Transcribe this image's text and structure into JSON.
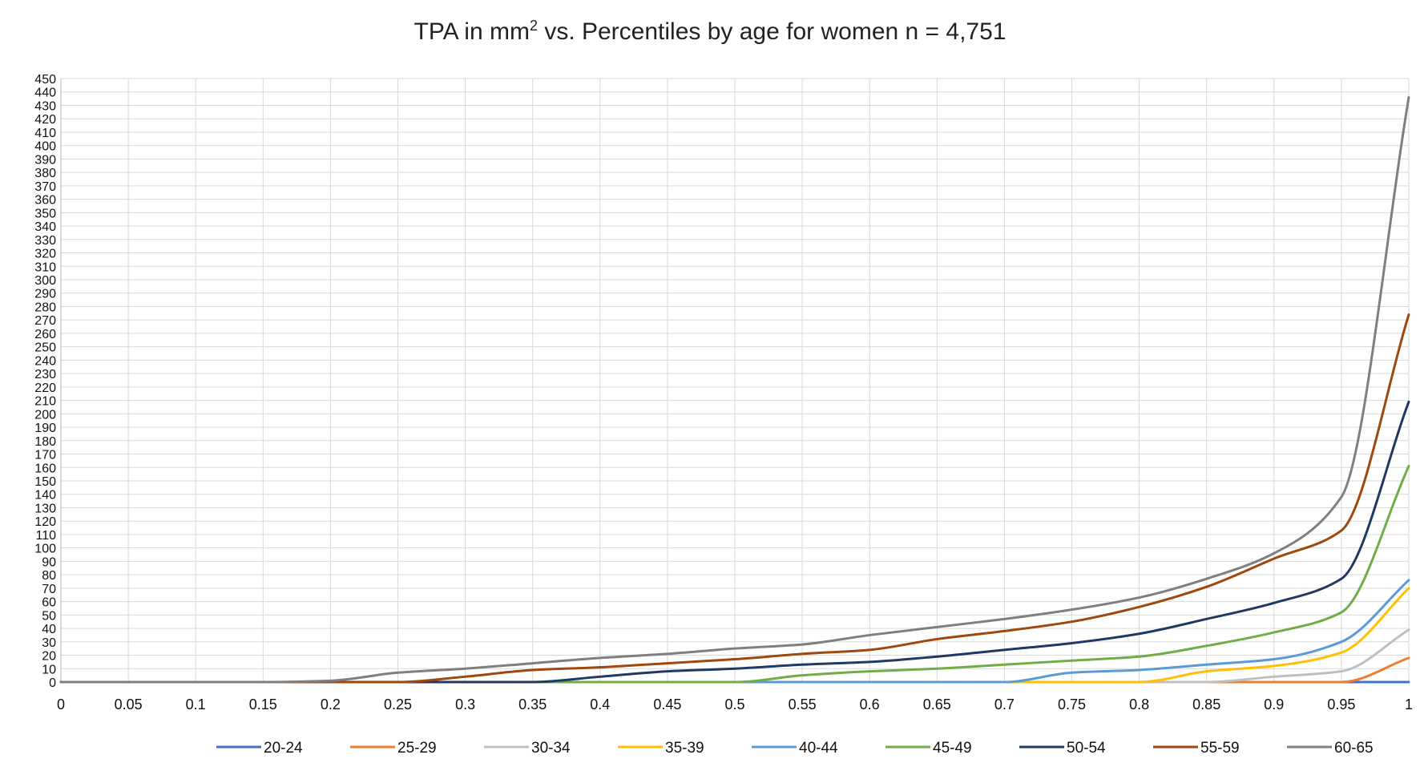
{
  "title": {
    "prefix": "TPA in mm",
    "superscript": "2",
    "suffix": " vs. Percentiles by age for women n = 4,751"
  },
  "chart_data": {
    "type": "line",
    "title": "TPA in mm² vs. Percentiles by age for women n = 4,751",
    "xlabel": "",
    "ylabel": "",
    "xlim": [
      0,
      1
    ],
    "ylim": [
      0,
      450
    ],
    "x_ticks": [
      "0",
      "0.05",
      "0.1",
      "0.15",
      "0.2",
      "0.25",
      "0.3",
      "0.35",
      "0.4",
      "0.45",
      "0.5",
      "0.55",
      "0.6",
      "0.65",
      "0.7",
      "0.75",
      "0.8",
      "0.85",
      "0.9",
      "0.95",
      "1"
    ],
    "y_ticks": [
      "0",
      "10",
      "20",
      "30",
      "40",
      "50",
      "60",
      "70",
      "80",
      "90",
      "100",
      "110",
      "120",
      "130",
      "140",
      "150",
      "160",
      "170",
      "180",
      "190",
      "200",
      "210",
      "220",
      "230",
      "240",
      "250",
      "260",
      "270",
      "280",
      "290",
      "300",
      "310",
      "320",
      "330",
      "340",
      "350",
      "360",
      "370",
      "380",
      "390",
      "400",
      "410",
      "420",
      "430",
      "440",
      "450"
    ],
    "grid": true,
    "legend_position": "bottom",
    "x": [
      0,
      0.05,
      0.1,
      0.15,
      0.2,
      0.25,
      0.3,
      0.35,
      0.4,
      0.45,
      0.5,
      0.55,
      0.6,
      0.65,
      0.7,
      0.75,
      0.8,
      0.85,
      0.9,
      0.95,
      1
    ],
    "series": [
      {
        "name": "20-24",
        "color": "#4472C4",
        "values": [
          0,
          0,
          0,
          0,
          0,
          0,
          0,
          0,
          0,
          0,
          0,
          0,
          0,
          0,
          0,
          0,
          0,
          0,
          0,
          0,
          0
        ]
      },
      {
        "name": "25-29",
        "color": "#ED7D31",
        "values": [
          0,
          0,
          0,
          0,
          0,
          0,
          0,
          0,
          0,
          0,
          0,
          0,
          0,
          0,
          0,
          0,
          0,
          0,
          0,
          0,
          18
        ]
      },
      {
        "name": "30-34",
        "color": "#BFBFBF",
        "values": [
          0,
          0,
          0,
          0,
          0,
          0,
          0,
          0,
          0,
          0,
          0,
          0,
          0,
          0,
          0,
          0,
          0,
          0,
          4,
          8,
          39
        ]
      },
      {
        "name": "35-39",
        "color": "#FFC000",
        "values": [
          0,
          0,
          0,
          0,
          0,
          0,
          0,
          0,
          0,
          0,
          0,
          0,
          0,
          0,
          0,
          0,
          0,
          8,
          12,
          22,
          70
        ]
      },
      {
        "name": "40-44",
        "color": "#5B9BD5",
        "values": [
          0,
          0,
          0,
          0,
          0,
          0,
          0,
          0,
          0,
          0,
          0,
          0,
          0,
          0,
          0,
          7,
          9,
          13,
          17,
          30,
          76
        ]
      },
      {
        "name": "45-49",
        "color": "#70AD47",
        "values": [
          0,
          0,
          0,
          0,
          0,
          0,
          0,
          0,
          0,
          0,
          0,
          5,
          8,
          10,
          13,
          16,
          19,
          27,
          37,
          52,
          161
        ]
      },
      {
        "name": "50-54",
        "color": "#1F3864",
        "values": [
          0,
          0,
          0,
          0,
          0,
          0,
          0,
          0,
          4,
          8,
          10,
          13,
          15,
          19,
          24,
          29,
          36,
          47,
          59,
          77,
          209
        ]
      },
      {
        "name": "55-59",
        "color": "#9E480E",
        "values": [
          0,
          0,
          0,
          0,
          0,
          0,
          4,
          9,
          11,
          14,
          17,
          21,
          24,
          32,
          38,
          45,
          56,
          71,
          92,
          113,
          274
        ]
      },
      {
        "name": "60-65",
        "color": "#7F7F7F",
        "values": [
          0,
          0,
          0,
          0,
          1,
          7,
          10,
          14,
          18,
          21,
          25,
          28,
          35,
          41,
          47,
          54,
          63,
          77,
          96,
          138,
          436
        ]
      }
    ]
  }
}
